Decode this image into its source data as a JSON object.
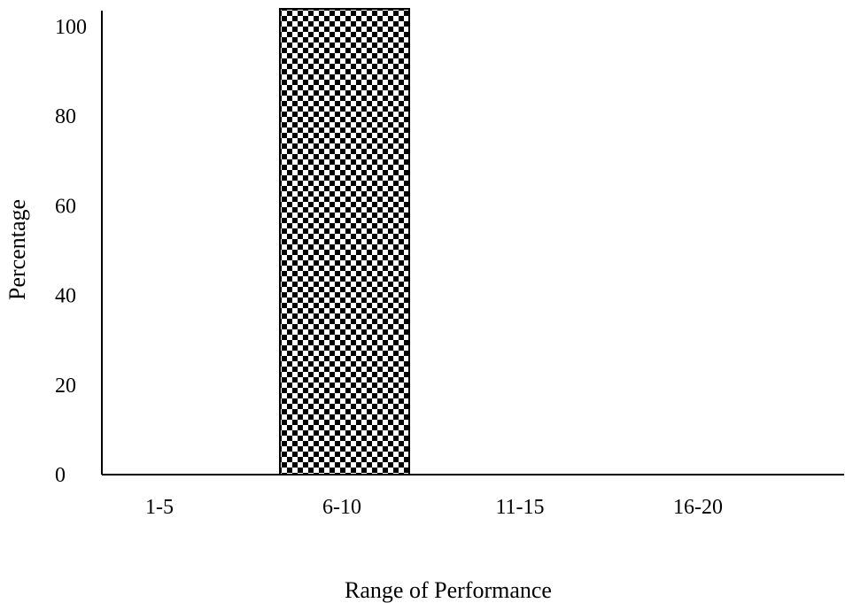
{
  "chart_data": {
    "type": "bar",
    "categories": [
      "1-5",
      "6-10",
      "11-15",
      "16-20"
    ],
    "values": [
      0,
      100,
      0,
      0
    ],
    "xlabel": "Range of Performance",
    "ylabel": "Percentage",
    "ylim": [
      0,
      100
    ],
    "yticks": [
      "0",
      "20",
      "40",
      "60",
      "80",
      "100"
    ],
    "grid": false,
    "legend": "none",
    "bar_fill": "checkerboard",
    "colors": {
      "axis": "#000000",
      "pattern_dark": "#000000",
      "pattern_light": "#ffffff"
    }
  }
}
